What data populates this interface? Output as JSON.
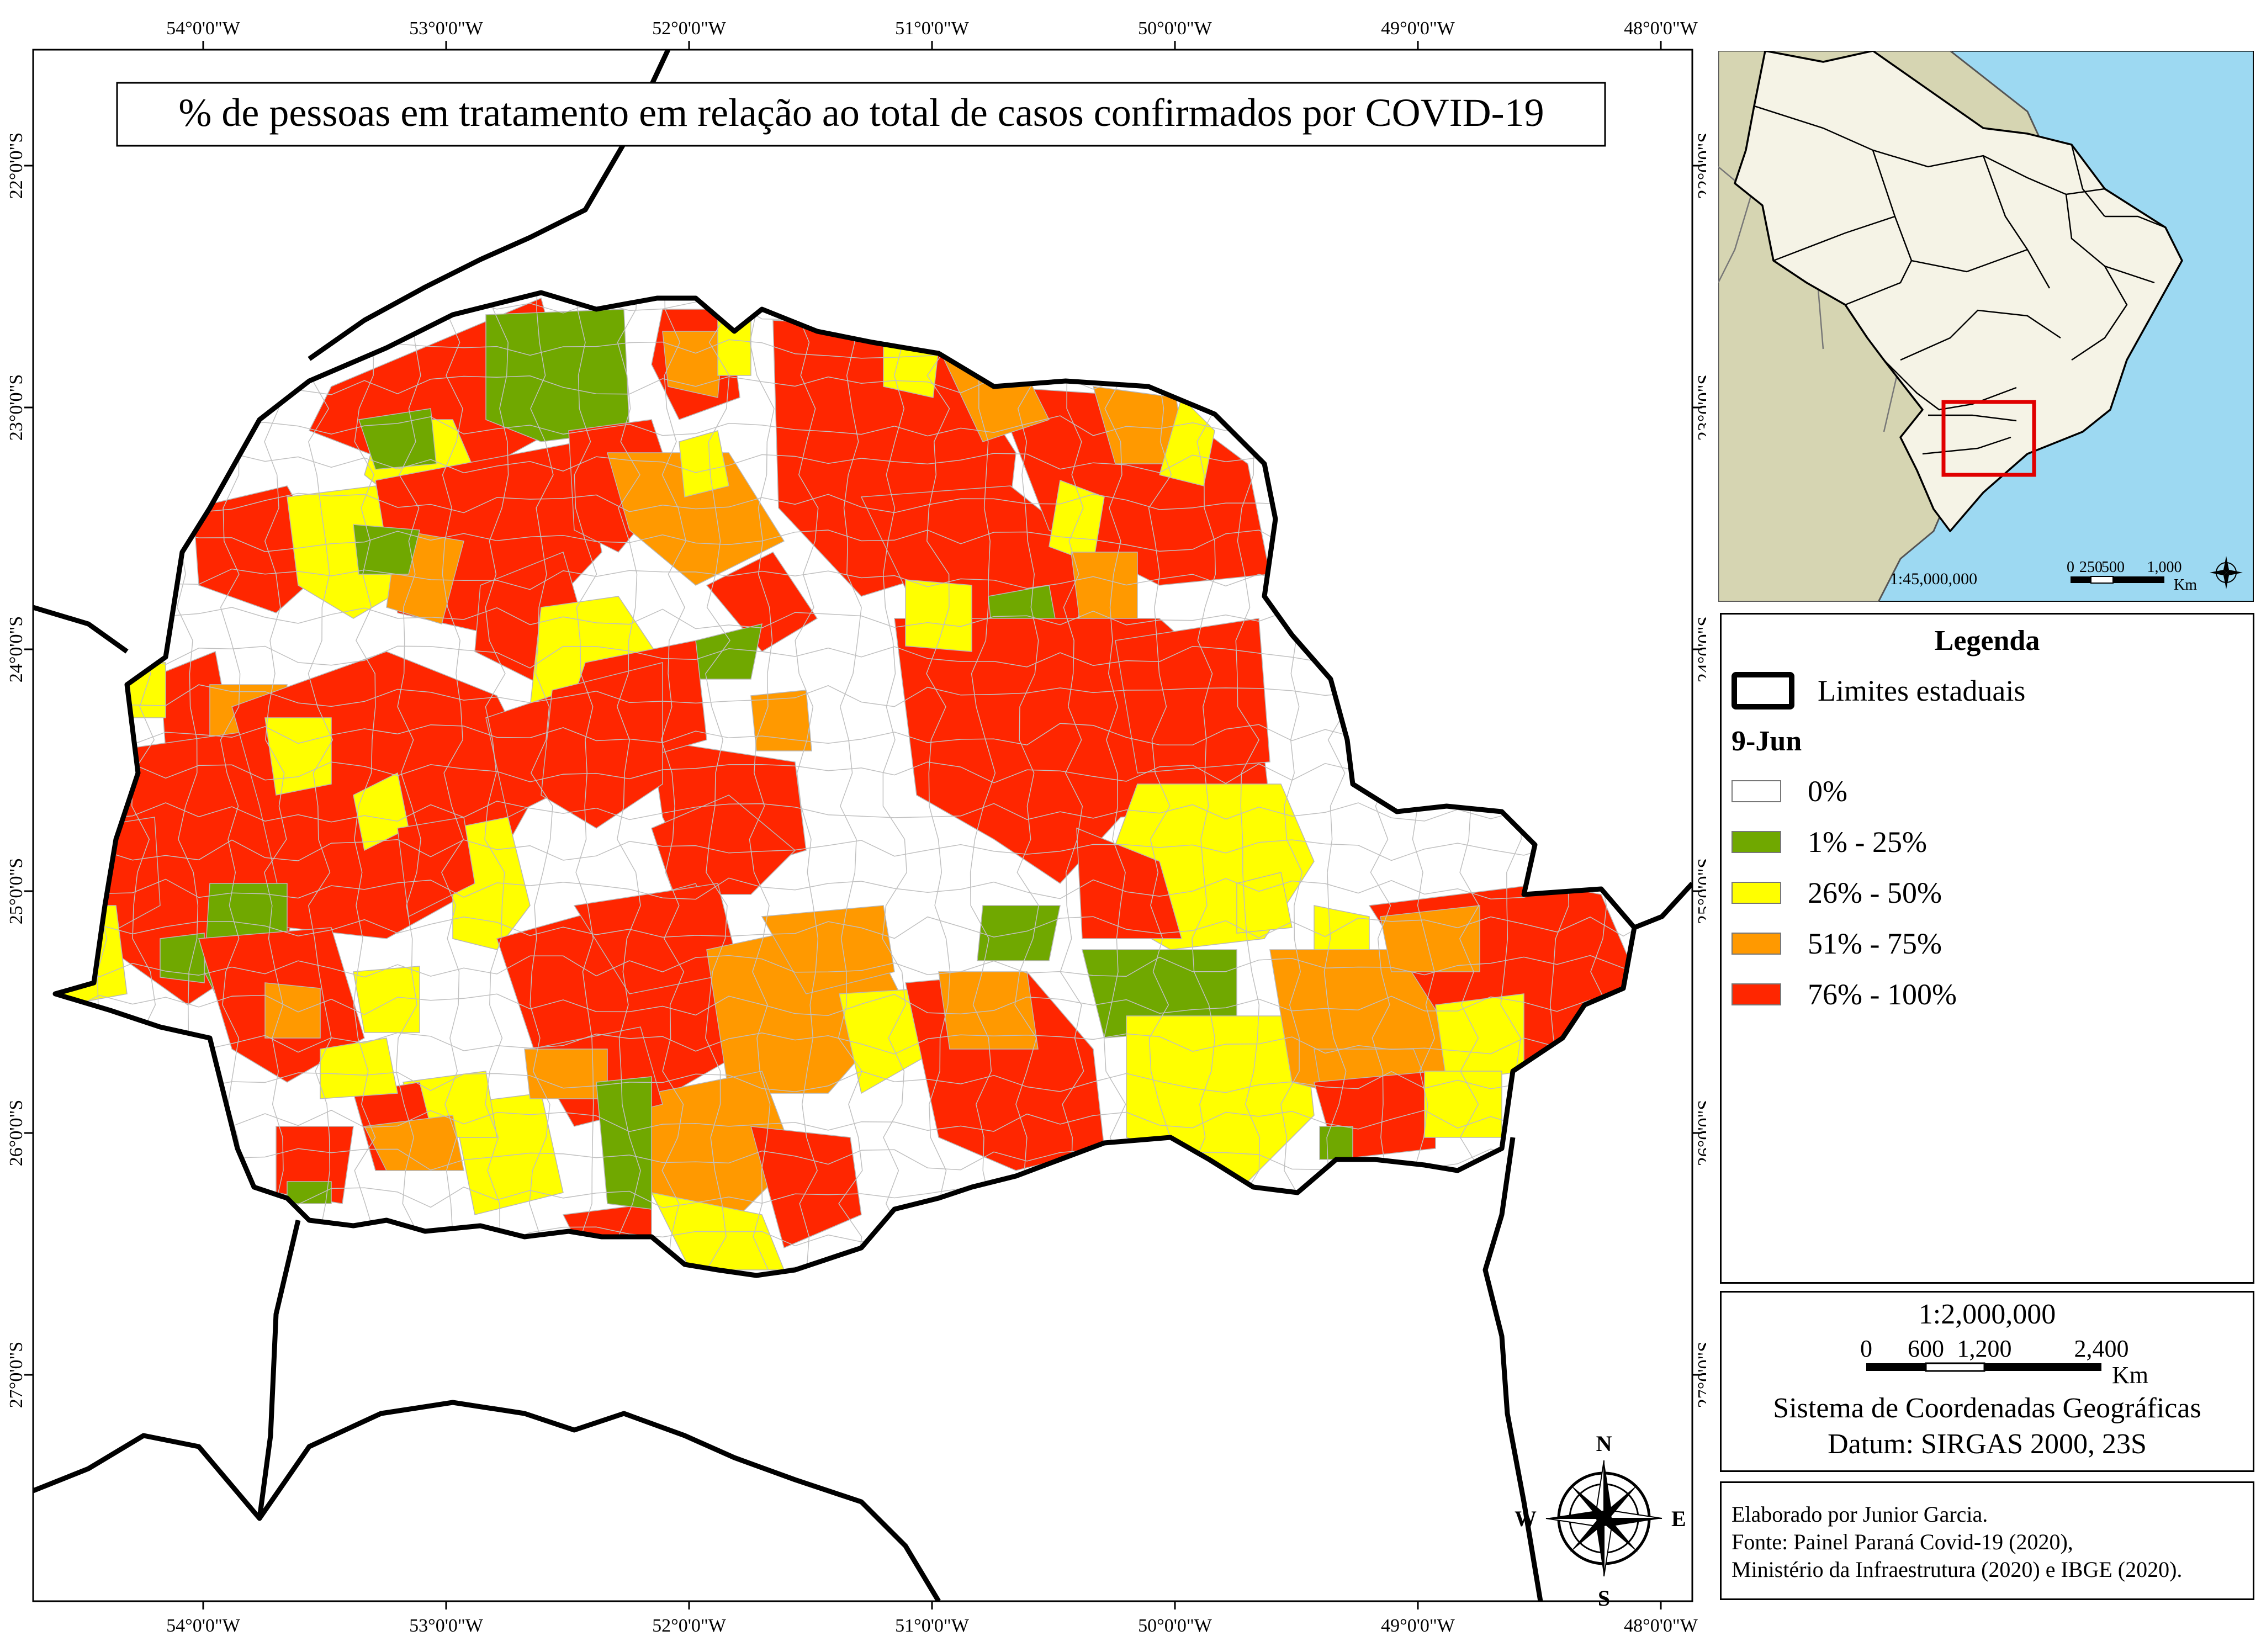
{
  "map": {
    "title": "% de pessoas em tratamento em relação ao total de casos confirmados por COVID-19",
    "longitude_ticks": [
      "54°0'0\"W",
      "53°0'0\"W",
      "52°0'0\"W",
      "51°0'0\"W",
      "50°0'0\"W",
      "49°0'0\"W",
      "48°0'0\"W"
    ],
    "latitude_ticks": [
      "22°0'0\"S",
      "23°0'0\"S",
      "24°0'0\"S",
      "25°0'0\"S",
      "26°0'0\"S",
      "27°0'0\"S"
    ],
    "compass": {
      "n": "N",
      "s": "S",
      "e": "E",
      "w": "W"
    },
    "region_colors": {
      "zero": "#ffffff",
      "c1": "#70a800",
      "c2": "#ffff00",
      "c3": "#ff9900",
      "c4": "#ff2600"
    }
  },
  "inset": {
    "scale_label": "1:45,000,000",
    "scale_numbers": [
      "0",
      "250",
      "500",
      "1,000"
    ],
    "scale_unit": "Km",
    "colors": {
      "ocean": "#9dd9f2",
      "land": "#d6d5b2",
      "brazil": "#f5f3e6",
      "highlight": "#e00000"
    }
  },
  "legend": {
    "title": "Legenda",
    "state_limits_label": "Limites estaduais",
    "date_label": "9-Jun",
    "classes": [
      {
        "label": "0%",
        "color": "#ffffff"
      },
      {
        "label": "1% - 25%",
        "color": "#70a800"
      },
      {
        "label": "26% - 50%",
        "color": "#ffff00"
      },
      {
        "label": "51% - 75%",
        "color": "#ff9900"
      },
      {
        "label": "76% - 100%",
        "color": "#ff2600"
      }
    ]
  },
  "scale_panel": {
    "ratio": "1:2,000,000",
    "numbers": [
      "0",
      "600",
      "1,200",
      "2,400"
    ],
    "unit": "Km",
    "coord_system": "Sistema de Coordenadas Geográficas",
    "datum": "Datum: SIRGAS 2000, 23S"
  },
  "credits": {
    "author": "Elaborado por Junior Garcia.",
    "source_1": "Fonte: Painel Paraná Covid-19 (2020),",
    "source_2": "Ministério da Infraestrutura (2020) e IBGE (2020)."
  }
}
